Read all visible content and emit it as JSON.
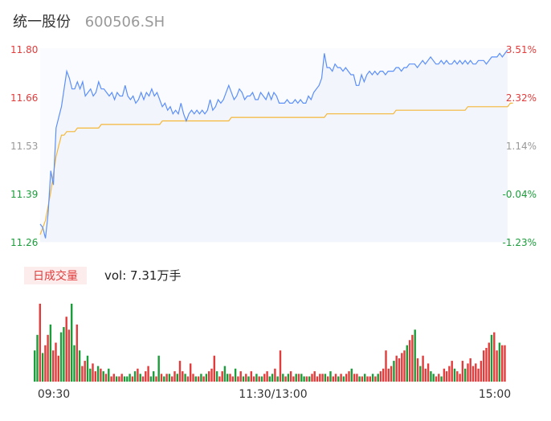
{
  "header": {
    "name": "统一股份",
    "code": "600506.SH"
  },
  "colors": {
    "up": "#e23b3b",
    "down": "#1a9d3a",
    "neutral": "#999999",
    "price_line": "#5b8ff9",
    "avg_line": "#f4b736",
    "area_fill": "#f3f5fd"
  },
  "volume_panel": {
    "badge": "日成交量",
    "vol_label": "vol: 7.31万手"
  },
  "chart_data": {
    "type": "line",
    "price_axis": {
      "labels": [
        "11.80",
        "11.66",
        "11.53",
        "11.39",
        "11.26"
      ]
    },
    "pct_axis": {
      "labels": [
        "3.51%",
        "2.32%",
        "1.14%",
        "-0.04%",
        "-1.23%"
      ]
    },
    "x_ticks": [
      "09:30",
      "11:30/13:00",
      "15:00"
    ],
    "price_range": [
      11.26,
      11.8
    ],
    "price": [
      11.31,
      11.3,
      11.27,
      11.34,
      11.46,
      11.42,
      11.58,
      11.61,
      11.64,
      11.69,
      11.74,
      11.72,
      11.69,
      11.69,
      11.71,
      11.69,
      11.71,
      11.67,
      11.68,
      11.69,
      11.67,
      11.68,
      11.71,
      11.69,
      11.69,
      11.68,
      11.67,
      11.68,
      11.66,
      11.68,
      11.67,
      11.67,
      11.7,
      11.67,
      11.66,
      11.67,
      11.65,
      11.66,
      11.68,
      11.66,
      11.68,
      11.67,
      11.69,
      11.67,
      11.68,
      11.66,
      11.64,
      11.65,
      11.63,
      11.64,
      11.62,
      11.63,
      11.62,
      11.65,
      11.62,
      11.6,
      11.62,
      11.63,
      11.62,
      11.63,
      11.62,
      11.63,
      11.62,
      11.63,
      11.66,
      11.63,
      11.64,
      11.66,
      11.65,
      11.66,
      11.68,
      11.7,
      11.68,
      11.66,
      11.67,
      11.69,
      11.68,
      11.66,
      11.67,
      11.67,
      11.68,
      11.66,
      11.66,
      11.68,
      11.67,
      11.66,
      11.68,
      11.66,
      11.68,
      11.67,
      11.65,
      11.65,
      11.65,
      11.66,
      11.65,
      11.65,
      11.66,
      11.65,
      11.66,
      11.65,
      11.65,
      11.67,
      11.66,
      11.68,
      11.69,
      11.7,
      11.72,
      11.79,
      11.75,
      11.75,
      11.74,
      11.76,
      11.75,
      11.75,
      11.74,
      11.75,
      11.74,
      11.73,
      11.73,
      11.7,
      11.7,
      11.73,
      11.71,
      11.73,
      11.74,
      11.73,
      11.74,
      11.73,
      11.74,
      11.74,
      11.73,
      11.74,
      11.74,
      11.74,
      11.75,
      11.75,
      11.74,
      11.75,
      11.75,
      11.76,
      11.76,
      11.76,
      11.75,
      11.76,
      11.77,
      11.76,
      11.77,
      11.78,
      11.77,
      11.76,
      11.76,
      11.77,
      11.76,
      11.77,
      11.76,
      11.76,
      11.77,
      11.76,
      11.77,
      11.76,
      11.77,
      11.76,
      11.77,
      11.76,
      11.76,
      11.77,
      11.77,
      11.77,
      11.76,
      11.77,
      11.78,
      11.78,
      11.78,
      11.79,
      11.78,
      11.79,
      11.8
    ],
    "avg_price": [
      11.28,
      11.3,
      11.32,
      11.36,
      11.4,
      11.45,
      11.5,
      11.53,
      11.56,
      11.56,
      11.57,
      11.57,
      11.57,
      11.57,
      11.58,
      11.58,
      11.58,
      11.58,
      11.58,
      11.58,
      11.58,
      11.58,
      11.58,
      11.59,
      11.59,
      11.59,
      11.59,
      11.59,
      11.59,
      11.59,
      11.59,
      11.59,
      11.59,
      11.59,
      11.59,
      11.59,
      11.59,
      11.59,
      11.59,
      11.59,
      11.59,
      11.59,
      11.59,
      11.59,
      11.59,
      11.59,
      11.6,
      11.6,
      11.6,
      11.6,
      11.6,
      11.6,
      11.6,
      11.6,
      11.6,
      11.6,
      11.6,
      11.6,
      11.6,
      11.6,
      11.6,
      11.6,
      11.6,
      11.6,
      11.6,
      11.6,
      11.6,
      11.6,
      11.6,
      11.6,
      11.6,
      11.6,
      11.61,
      11.61,
      11.61,
      11.61,
      11.61,
      11.61,
      11.61,
      11.61,
      11.61,
      11.61,
      11.61,
      11.61,
      11.61,
      11.61,
      11.61,
      11.61,
      11.61,
      11.61,
      11.61,
      11.61,
      11.61,
      11.61,
      11.61,
      11.61,
      11.61,
      11.61,
      11.61,
      11.61,
      11.61,
      11.61,
      11.61,
      11.61,
      11.61,
      11.61,
      11.61,
      11.61,
      11.62,
      11.62,
      11.62,
      11.62,
      11.62,
      11.62,
      11.62,
      11.62,
      11.62,
      11.62,
      11.62,
      11.62,
      11.62,
      11.62,
      11.62,
      11.62,
      11.62,
      11.62,
      11.62,
      11.62,
      11.62,
      11.62,
      11.62,
      11.62,
      11.62,
      11.62,
      11.63,
      11.63,
      11.63,
      11.63,
      11.63,
      11.63,
      11.63,
      11.63,
      11.63,
      11.63,
      11.63,
      11.63,
      11.63,
      11.63,
      11.63,
      11.63,
      11.63,
      11.63,
      11.63,
      11.63,
      11.63,
      11.63,
      11.63,
      11.63,
      11.63,
      11.63,
      11.63,
      11.64,
      11.64,
      11.64,
      11.64,
      11.64,
      11.64,
      11.64,
      11.64,
      11.64,
      11.64,
      11.64,
      11.64,
      11.64,
      11.64,
      11.64,
      11.64,
      11.65,
      11.65
    ],
    "volume": [
      12,
      18,
      30,
      11,
      14,
      18,
      22,
      12,
      15,
      10,
      19,
      21,
      25,
      20,
      30,
      14,
      22,
      12,
      6,
      8,
      10,
      5,
      7,
      4,
      6,
      5,
      4,
      3,
      5,
      2,
      3,
      2,
      2,
      3,
      2,
      2,
      3,
      2,
      4,
      5,
      3,
      2,
      4,
      6,
      2,
      4,
      2,
      10,
      3,
      2,
      3,
      3,
      2,
      4,
      3,
      8,
      4,
      3,
      2,
      7,
      3,
      2,
      2,
      3,
      2,
      3,
      4,
      5,
      10,
      4,
      2,
      4,
      6,
      3,
      3,
      2,
      5,
      2,
      4,
      2,
      3,
      2,
      4,
      2,
      3,
      2,
      2,
      3,
      4,
      2,
      3,
      5,
      2,
      12,
      3,
      2,
      3,
      4,
      2,
      3,
      3,
      3,
      2,
      2,
      2,
      3,
      4,
      2,
      3,
      3,
      3,
      2,
      4,
      2,
      3,
      2,
      3,
      2,
      3,
      4,
      5,
      3,
      3,
      2,
      2,
      3,
      2,
      2,
      3,
      2,
      3,
      4,
      5,
      12,
      5,
      6,
      8,
      10,
      9,
      11,
      12,
      14,
      16,
      18,
      20,
      9,
      6,
      10,
      5,
      7,
      4,
      3,
      2,
      3,
      2,
      5,
      4,
      6,
      8,
      5,
      4,
      3,
      8,
      5,
      7,
      9,
      6,
      7,
      5,
      8,
      12,
      13,
      15,
      18,
      19,
      12,
      15,
      14,
      14
    ],
    "volume_dir": [
      -1,
      -1,
      1,
      -1,
      1,
      1,
      -1,
      1,
      1,
      1,
      -1,
      -1,
      1,
      1,
      -1,
      -1,
      1,
      -1,
      1,
      1,
      -1,
      -1,
      1,
      1,
      -1,
      1,
      -1,
      1,
      -1,
      1,
      1,
      -1,
      1,
      1,
      -1,
      -1,
      -1,
      1,
      -1,
      1,
      -1,
      1,
      1,
      1,
      -1,
      -1,
      1,
      -1,
      1,
      -1,
      1,
      -1,
      1,
      1,
      -1,
      1,
      1,
      -1,
      1,
      1,
      1,
      -1,
      1,
      -1,
      1,
      -1,
      1,
      1,
      1,
      -1,
      1,
      1,
      -1,
      -1,
      1,
      1,
      -1,
      1,
      1,
      -1,
      1,
      -1,
      1,
      1,
      -1,
      1,
      -1,
      1,
      1,
      -1,
      -1,
      1,
      -1,
      1,
      -1,
      1,
      -1,
      1,
      1,
      -1,
      1,
      -1,
      -1,
      1,
      -1,
      1,
      1,
      1,
      1,
      1,
      -1,
      1,
      -1,
      1,
      1,
      -1,
      1,
      -1,
      1,
      1,
      -1,
      1,
      1,
      -1,
      1,
      -1,
      1,
      1,
      -1,
      1,
      -1,
      1,
      1,
      1,
      1,
      1,
      -1,
      1,
      1,
      1,
      1,
      -1,
      1,
      1,
      -1,
      1,
      -1,
      1,
      1,
      1,
      -1,
      -1,
      1,
      1,
      -1,
      1,
      1,
      1,
      1,
      -1,
      1,
      1,
      1,
      -1,
      1,
      1,
      1,
      1,
      1,
      1,
      1,
      1,
      1,
      -1,
      1,
      1,
      -1,
      1,
      1,
      -1
    ]
  }
}
